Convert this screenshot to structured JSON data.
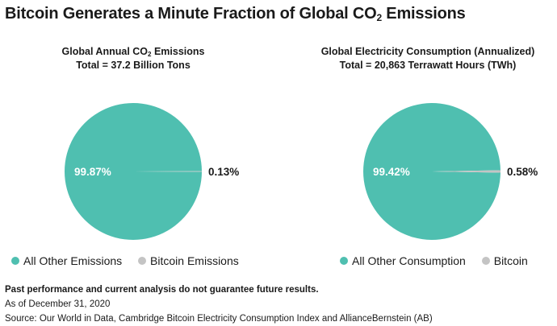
{
  "title": {
    "main": "Bitcoin Generates a Minute Fraction of Global CO",
    "sub": "2",
    "end": " Emissions"
  },
  "colors": {
    "main_slice": "#4fbfb0",
    "small_slice": "#c4c4c4"
  },
  "chart_data": [
    {
      "type": "pie",
      "title_line1_pre": "Global Annual CO",
      "title_line1_sub": "2",
      "title_line1_post": " Emissions",
      "title_line2": "Total = 37.2 Billion Tons",
      "slices": [
        {
          "label": "All Other Emissions",
          "value": 99.87,
          "value_label": "99.87%"
        },
        {
          "label": "Bitcoin Emissions",
          "value": 0.13,
          "value_label": "0.13%"
        }
      ]
    },
    {
      "type": "pie",
      "title_line1_pre": "Global Electricity Consumption (Annualized)",
      "title_line1_sub": "",
      "title_line1_post": "",
      "title_line2": "Total = 20,863 Terrawatt Hours (TWh)",
      "slices": [
        {
          "label": "All Other Consumption",
          "value": 99.42,
          "value_label": "99.42%"
        },
        {
          "label": "Bitcoin",
          "value": 0.58,
          "value_label": "0.58%"
        }
      ]
    }
  ],
  "footer": {
    "disclaimer": "Past performance and current analysis do not guarantee future results.",
    "date": "As of December 31, 2020",
    "source": "Source: Our World in Data, Cambridge Bitcoin Electricity Consumption Index and AllianceBernstein (AB)"
  }
}
